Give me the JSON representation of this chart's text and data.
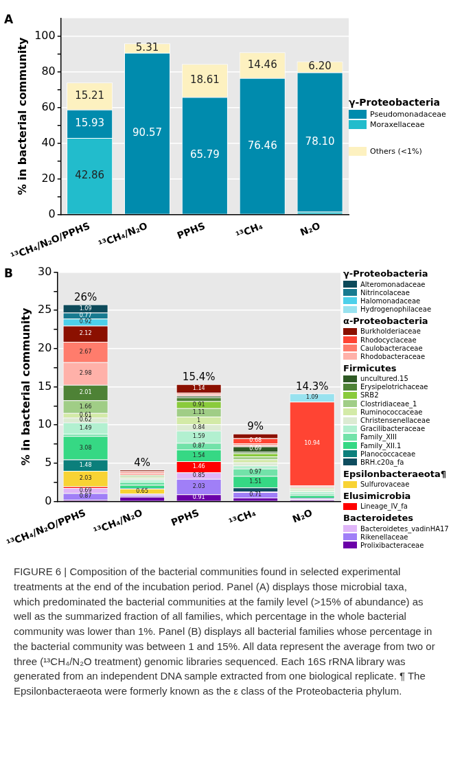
{
  "chart_data": [
    {
      "type": "bar",
      "title": "A",
      "ylabel": "% in bacterial community",
      "stacked": true,
      "grid": "y",
      "legend": "right",
      "legend_title": "γ-Proteobacteria",
      "categories": [
        "¹³CH₄/N₂O/PPHS",
        "¹³CH₄/N₂O",
        "PPHS",
        "¹³CH₄",
        "N₂O"
      ],
      "ylim": [
        0,
        110
      ],
      "yticks": [
        0,
        {
          "value": 10,
          "label": null
        },
        20,
        {
          "value": 30,
          "label": null
        },
        40,
        {
          "value": 50,
          "label": null
        },
        60,
        {
          "value": 70,
          "label": null
        },
        80,
        {
          "value": 90,
          "label": null
        },
        100
      ],
      "series": [
        {
          "name": "Moraxellaceae",
          "color": "#22bccc",
          "values": [
            42.86,
            null,
            null,
            null,
            1.5
          ],
          "value_labels": [
            "42.86",
            null,
            null,
            null,
            null
          ]
        },
        {
          "name": "Pseudomonadaceae",
          "color": "#008bad",
          "values": [
            15.93,
            90.57,
            65.79,
            76.46,
            78.1
          ],
          "value_labels": [
            "15.93",
            "90.57",
            "65.79",
            "76.46",
            "78.10"
          ]
        },
        {
          "name": "Others (<1%)",
          "color": "#fdf1c0",
          "values": [
            15.21,
            5.31,
            18.61,
            14.46,
            6.2
          ],
          "value_labels": [
            "15.21",
            "5.31",
            "18.61",
            "14.46",
            "6.20"
          ]
        }
      ]
    },
    {
      "type": "bar",
      "title": "B",
      "ylabel": "% in bacterial community",
      "stacked": true,
      "grid": "y",
      "legend": "right",
      "legend_title": "γ-Proteobacteria",
      "categories": [
        "¹³CH₄/N₂O/PPHS",
        "¹³CH₄/N₂O",
        "PPHS",
        "¹³CH₄",
        "N₂O"
      ],
      "ylim": [
        0,
        30
      ],
      "yticks": [
        0,
        {
          "value": 2.5,
          "label": null
        },
        5,
        {
          "value": 7.5,
          "label": null
        },
        10,
        {
          "value": 12.5,
          "label": null
        },
        15,
        {
          "value": 17.5,
          "label": null
        },
        20,
        {
          "value": 22.5,
          "label": null
        },
        25,
        {
          "value": 27.5,
          "label": null
        },
        30
      ],
      "totals": [
        "26%",
        "4%",
        "15.4%",
        "9%",
        "14.3%"
      ],
      "annotations": [
        "α-Proteobacteria",
        "Firmicutes",
        "Epsilonbacteraeota¶",
        "Elusimicrobia",
        "Bacteroidetes",
        "FIGURE 6 | Composition of the bacterial communities found in selected experimental treatments at the end of the incubation period. Panel (A) displays those microbial taxa, which predominated the bacterial communities at the family level (>15% of abundance) as well as the summarized fraction of all families, which percentage in the whole bacterial community was lower than 1%. Panel (B) displays all bacterial families whose percentage in the bacterial community was between 1 and 15%. All data represent the average from two or three (¹³CH₄/N₂O treatment) genomic libraries sequenced. Each 16S rRNA library was generated from an independent DNA sample extracted from one biological replicate. ¶ The Epsilonbacteraeota were formerly known as the ε class of the Proteobacteria phylum."
      ],
      "series": [
        {
          "name": "Prolixibacteraceae",
          "color": "#6a00a8",
          "values": [
            0.2,
            0.6,
            0.91,
            0.5,
            0.2
          ],
          "value_labels": [
            null,
            null,
            "0.91",
            null,
            null
          ]
        },
        {
          "name": "Rikenellaceae",
          "color": "#a07ff7",
          "values": [
            0.87,
            0.2,
            2.03,
            0.71,
            0.1
          ],
          "value_labels": [
            "0.87",
            null,
            "2.03",
            "0.71",
            null
          ]
        },
        {
          "name": "Bacteroidetes_vadinHA17",
          "color": "#dfb5f8",
          "values": [
            0.69,
            0.2,
            0.85,
            0.1,
            0.1
          ],
          "value_labels": [
            "0.69",
            null,
            "0.85",
            null,
            null
          ]
        },
        {
          "name": "Lineage_IV_fa",
          "color": "#ff0000",
          "values": [
            0.2,
            null,
            1.46,
            null,
            null
          ],
          "value_labels": [
            null,
            null,
            "1.46",
            null,
            null
          ]
        },
        {
          "name": "Sulfurovaceae",
          "color": "#f8d334",
          "values": [
            2.03,
            0.65,
            null,
            null,
            null
          ],
          "value_labels": [
            "2.03",
            "0.65",
            null,
            null,
            null
          ]
        },
        {
          "name": "BRH.c20a_fa",
          "color": "#0e4c5e",
          "values": [
            null,
            null,
            null,
            0.5,
            null
          ]
        },
        {
          "name": "Planococcaceae",
          "color": "#0b7f7b",
          "values": [
            1.48,
            0.1,
            null,
            null,
            0.1
          ],
          "value_labels": [
            "1.48",
            null,
            null,
            null,
            null
          ]
        },
        {
          "name": "Family_XII.1",
          "color": "#36d884",
          "values": [
            3.08,
            0.4,
            1.54,
            1.51,
            0.3
          ],
          "value_labels": [
            "3.08",
            null,
            "1.54",
            "1.51",
            null
          ]
        },
        {
          "name": "Family_XIII",
          "color": "#72e2a9",
          "values": [
            0.3,
            0.4,
            0.87,
            0.97,
            0.2
          ],
          "value_labels": [
            null,
            null,
            "0.87",
            "0.97",
            null
          ]
        },
        {
          "name": "Gracilibacteraceae",
          "color": "#b2f0d0",
          "values": [
            1.49,
            0.3,
            1.59,
            0.4,
            0.3
          ],
          "value_labels": [
            "1.49",
            null,
            "1.59",
            null,
            null
          ]
        },
        {
          "name": "Christensenellaceae",
          "color": "#dcebd2",
          "values": [
            0.62,
            0.2,
            0.84,
            0.4,
            0.3
          ],
          "value_labels": [
            "0.62",
            null,
            "0.84",
            null,
            null
          ]
        },
        {
          "name": "Ruminococcaceae",
          "color": "#d3eaa7",
          "values": [
            0.61,
            0.2,
            1,
            0.4,
            0.2
          ],
          "value_labels": [
            "0.61",
            null,
            "1",
            null,
            null
          ]
        },
        {
          "name": "Clostridiaceae_1",
          "color": "#a0cd86",
          "values": [
            1.66,
            0.2,
            1.11,
            0.4,
            null
          ],
          "value_labels": [
            "1.66",
            null,
            "1.11",
            null,
            null
          ]
        },
        {
          "name": "SRB2",
          "color": "#8acb3c",
          "values": [
            null,
            null,
            0.91,
            0.4,
            null
          ],
          "value_labels": [
            null,
            null,
            "0.91",
            null,
            null
          ]
        },
        {
          "name": "Erysipelotrichaceae",
          "color": "#4e8236",
          "values": [
            2.01,
            null,
            0.5,
            0.2,
            null
          ],
          "value_labels": [
            "2.01",
            null,
            null,
            null,
            null
          ]
        },
        {
          "name": "uncultured.15",
          "color": "#2f5a25",
          "values": [
            null,
            null,
            0.2,
            0.69,
            null
          ],
          "value_labels": [
            null,
            null,
            null,
            "0.69",
            null
          ]
        },
        {
          "name": "Rhodobacteraceae",
          "color": "#ffb1a9",
          "values": [
            2.98,
            0.3,
            0.2,
            0.2,
            0.2
          ],
          "value_labels": [
            "2.98",
            null,
            null,
            null,
            null
          ]
        },
        {
          "name": "Caulobacteraceae",
          "color": "#ff7c6c",
          "values": [
            2.67,
            0.2,
            0.2,
            0.2,
            0.1
          ],
          "value_labels": [
            "2.67",
            null,
            null,
            null,
            null
          ]
        },
        {
          "name": "Rhodocyclaceae",
          "color": "#ff4433",
          "values": [
            null,
            null,
            null,
            0.68,
            10.94
          ],
          "value_labels": [
            null,
            null,
            null,
            "0.68",
            "10.94"
          ]
        },
        {
          "name": "Burkholderiaceae",
          "color": "#8b1000",
          "values": [
            2.12,
            0.2,
            1.14,
            0.6,
            null
          ],
          "value_labels": [
            "2.12",
            null,
            "1.14",
            null,
            null
          ]
        },
        {
          "name": "Hydrogenophilaceae",
          "color": "#98e2ef",
          "values": [
            null,
            null,
            null,
            null,
            1.09
          ],
          "value_labels": [
            null,
            null,
            null,
            null,
            "1.09"
          ]
        },
        {
          "name": "Halomonadaceae",
          "color": "#4dd0ea",
          "values": [
            0.92,
            null,
            null,
            null,
            null
          ],
          "value_labels": [
            "0.92",
            null,
            null,
            null,
            null
          ]
        },
        {
          "name": "Nitrincolaceae",
          "color": "#177a90",
          "values": [
            0.77,
            null,
            null,
            null,
            null
          ],
          "value_labels": [
            "0.77",
            null,
            null,
            null,
            null
          ]
        },
        {
          "name": "Alteromonadaceae",
          "color": "#0d4a5a",
          "values": [
            1.09,
            null,
            null,
            null,
            null
          ],
          "value_labels": [
            "1.09",
            null,
            null,
            null,
            null
          ]
        }
      ]
    }
  ]
}
